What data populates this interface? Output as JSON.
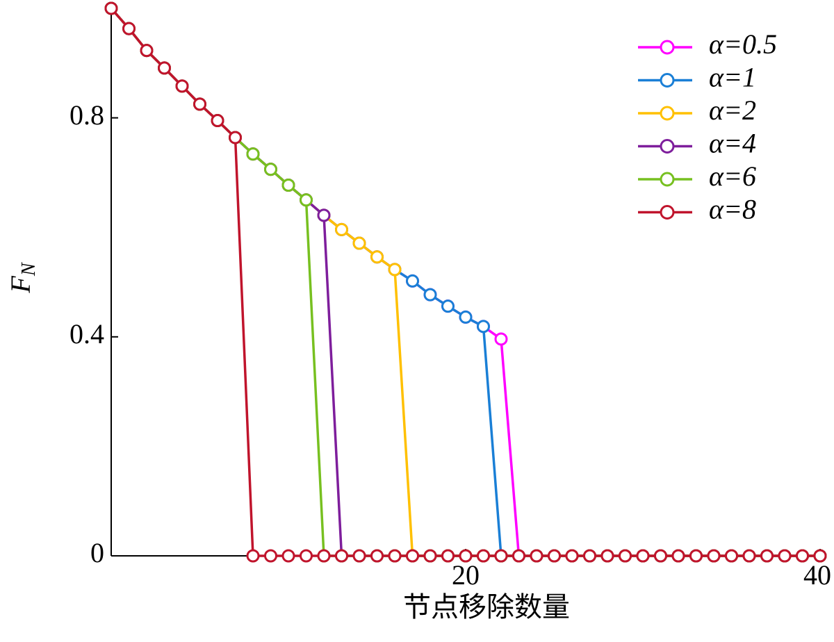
{
  "chart_data": {
    "type": "line",
    "x_label": "节点移除数量",
    "y_label": "F",
    "y_label_sub": "N",
    "x": [
      0,
      1,
      2,
      3,
      4,
      5,
      6,
      7,
      8,
      9,
      10,
      11,
      12,
      13,
      14,
      15,
      16,
      17,
      18,
      19,
      20,
      21,
      22,
      23,
      24,
      25,
      26,
      27,
      28,
      29,
      30,
      31,
      32,
      33,
      34,
      35,
      36,
      37,
      38,
      39,
      40
    ],
    "xlim": [
      0,
      40
    ],
    "ylim": [
      0,
      1.0
    ],
    "xticks": [
      20,
      40
    ],
    "yticks": [
      0,
      0.4,
      0.8
    ],
    "legend": "upper right",
    "series": [
      {
        "name": "α=0.5",
        "color": "#ff00ff",
        "values": [
          1.0,
          0.963,
          0.923,
          0.891,
          0.858,
          0.825,
          0.795,
          0.764,
          0.734,
          0.706,
          0.677,
          0.65,
          0.622,
          0.596,
          0.571,
          0.546,
          0.523,
          0.502,
          0.477,
          0.456,
          0.436,
          0.419,
          0.396,
          0,
          0,
          0,
          0,
          0,
          0,
          0,
          0,
          0,
          0,
          0,
          0,
          0,
          0,
          0,
          0,
          0,
          0
        ]
      },
      {
        "name": "α=1",
        "color": "#1a7fd6",
        "values": [
          1.0,
          0.963,
          0.923,
          0.891,
          0.858,
          0.825,
          0.795,
          0.764,
          0.734,
          0.706,
          0.677,
          0.65,
          0.622,
          0.596,
          0.571,
          0.546,
          0.523,
          0.502,
          0.477,
          0.456,
          0.436,
          0.419,
          0,
          0,
          0,
          0,
          0,
          0,
          0,
          0,
          0,
          0,
          0,
          0,
          0,
          0,
          0,
          0,
          0,
          0,
          0
        ]
      },
      {
        "name": "α=2",
        "color": "#ffc000",
        "values": [
          1.0,
          0.963,
          0.923,
          0.891,
          0.858,
          0.825,
          0.795,
          0.764,
          0.734,
          0.706,
          0.677,
          0.65,
          0.622,
          0.596,
          0.571,
          0.546,
          0.523,
          0,
          0,
          0,
          0,
          0,
          0,
          0,
          0,
          0,
          0,
          0,
          0,
          0,
          0,
          0,
          0,
          0,
          0,
          0,
          0,
          0,
          0,
          0,
          0
        ]
      },
      {
        "name": "α=4",
        "color": "#7e1e9c",
        "values": [
          1.0,
          0.963,
          0.923,
          0.891,
          0.858,
          0.825,
          0.795,
          0.764,
          0.734,
          0.706,
          0.677,
          0.65,
          0.622,
          0,
          0,
          0,
          0,
          0,
          0,
          0,
          0,
          0,
          0,
          0,
          0,
          0,
          0,
          0,
          0,
          0,
          0,
          0,
          0,
          0,
          0,
          0,
          0,
          0,
          0,
          0,
          0
        ]
      },
      {
        "name": "α=6",
        "color": "#77c020",
        "values": [
          1.0,
          0.963,
          0.923,
          0.891,
          0.858,
          0.825,
          0.795,
          0.764,
          0.734,
          0.706,
          0.677,
          0.65,
          0,
          0,
          0,
          0,
          0,
          0,
          0,
          0,
          0,
          0,
          0,
          0,
          0,
          0,
          0,
          0,
          0,
          0,
          0,
          0,
          0,
          0,
          0,
          0,
          0,
          0,
          0,
          0,
          0
        ]
      },
      {
        "name": "α=8",
        "color": "#c0142c",
        "values": [
          1.0,
          0.963,
          0.923,
          0.891,
          0.858,
          0.825,
          0.795,
          0.764,
          0,
          0,
          0,
          0,
          0,
          0,
          0,
          0,
          0,
          0,
          0,
          0,
          0,
          0,
          0,
          0,
          0,
          0,
          0,
          0,
          0,
          0,
          0,
          0,
          0,
          0,
          0,
          0,
          0,
          0,
          0,
          0,
          0
        ]
      }
    ]
  }
}
